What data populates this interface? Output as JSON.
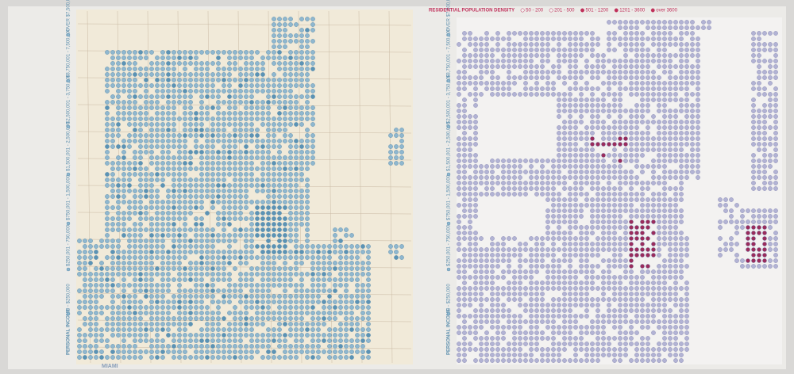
{
  "income_legend": {
    "title": "PERSONAL INCOME",
    "items": [
      "0 - $250,000",
      "$250,001 - 750,000",
      "$750,001 - 1,500,000",
      "$1,500,001 - 2,500,000",
      "$2,500,001 - 3,750,000",
      "$3,750,001 - 7,500,000",
      "OVER $7,500,000"
    ]
  },
  "density_legend": {
    "title": "RESIDENTIAL POPULATION DENSITY",
    "items": [
      "50 - 200",
      "201 - 500",
      "501 - 1200",
      "1201 - 3600",
      "over 3600"
    ]
  },
  "map_label": "MIAMI"
}
